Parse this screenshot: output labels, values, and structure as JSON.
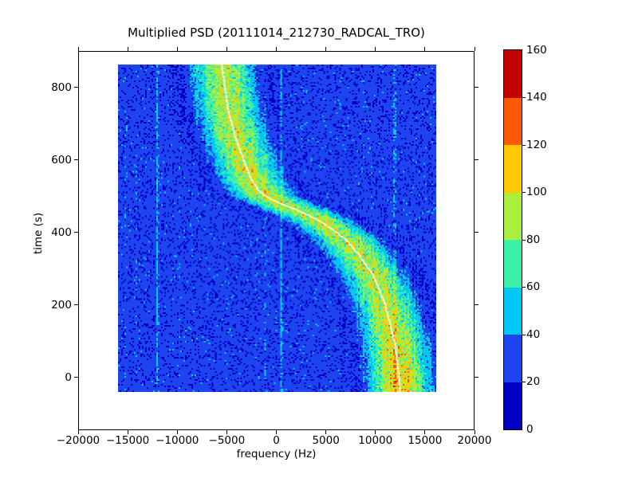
{
  "title": "Multiplied PSD (20111014_212730_RADCAL_TRO)",
  "chart_data": {
    "type": "heatmap",
    "title": "Multiplied PSD (20111014_212730_RADCAL_TRO)",
    "xlabel": "frequency (Hz)",
    "ylabel": "time (s)",
    "xlim": [
      -20000,
      20000
    ],
    "ylim": [
      -145,
      900
    ],
    "xticks": [
      -20000,
      -15000,
      -10000,
      -5000,
      0,
      5000,
      10000,
      15000,
      20000
    ],
    "xtick_labels": [
      "−20000",
      "−15000",
      "−10000",
      "−5000",
      "0",
      "5000",
      "10000",
      "15000",
      "20000"
    ],
    "yticks": [
      0,
      200,
      400,
      600,
      800
    ],
    "ytick_labels": [
      "0",
      "200",
      "400",
      "600",
      "800"
    ],
    "grid": false,
    "legend": null,
    "data_extent": {
      "freq_hz": [
        -16000,
        16100
      ],
      "time_s": [
        -40,
        863
      ]
    },
    "background_noise": {
      "description": "speckled blue noise floor, PSD mostly 20-40 with dark 0-20 speckles and faint vertical striping",
      "base_level": 28,
      "spread": 8,
      "dark_speckle_fraction": 0.17
    },
    "doppler_track": {
      "description": "white center line of S-shaped Doppler chirp, samples as [time_s, freq_hz]",
      "line_color": "#ffffff",
      "band_sigma_hz": 2700,
      "band_peak_level": 100,
      "points": [
        [
          -40,
          12500
        ],
        [
          0,
          12400
        ],
        [
          100,
          11950
        ],
        [
          200,
          11000
        ],
        [
          280,
          9800
        ],
        [
          340,
          8300
        ],
        [
          380,
          7000
        ],
        [
          410,
          5600
        ],
        [
          435,
          4100
        ],
        [
          455,
          2600
        ],
        [
          470,
          1300
        ],
        [
          485,
          0
        ],
        [
          500,
          -1100
        ],
        [
          520,
          -1900
        ],
        [
          550,
          -2600
        ],
        [
          600,
          -3300
        ],
        [
          660,
          -4100
        ],
        [
          730,
          -4800
        ],
        [
          800,
          -5200
        ],
        [
          863,
          -5500
        ]
      ]
    },
    "interference_lines_hz": [
      {
        "freq": -15200,
        "strength": 5
      },
      {
        "freq": -14200,
        "strength": 8
      },
      {
        "freq": -12100,
        "strength": 16
      },
      {
        "freq": -9800,
        "strength": 6
      },
      {
        "freq": -7000,
        "strength": 6
      },
      {
        "freq": -5300,
        "strength": 5
      },
      {
        "freq": -1100,
        "strength": 5
      },
      {
        "freq": 450,
        "strength": 18
      },
      {
        "freq": 11900,
        "strength": 6
      }
    ],
    "colorbar": {
      "position": "right",
      "levels": [
        0,
        20,
        40,
        60,
        80,
        100,
        120,
        140,
        160
      ],
      "tick_labels": [
        "0",
        "20",
        "40",
        "60",
        "80",
        "100",
        "120",
        "140",
        "160"
      ],
      "colors": [
        "#0000C4",
        "#1E44F0",
        "#00C8F5",
        "#3CF0A8",
        "#A8F03C",
        "#FFC800",
        "#FF5A00",
        "#C40000"
      ]
    }
  }
}
